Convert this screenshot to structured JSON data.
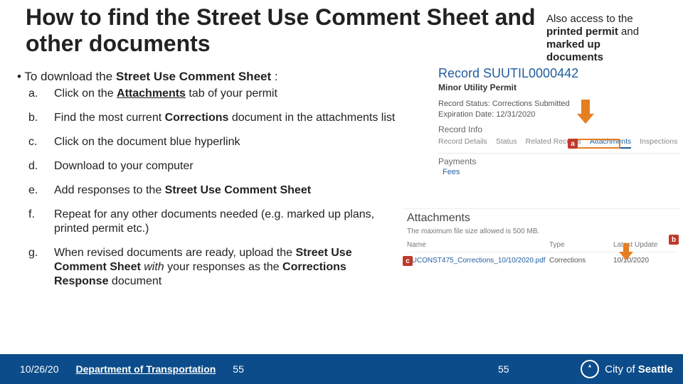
{
  "title": "How to find the Street Use Comment Sheet and other documents",
  "callout": {
    "line1": "Also access to the",
    "line2_pre": "printed permit",
    "line2_post": " and",
    "line3": "marked up",
    "line4": "documents"
  },
  "intro": {
    "prefix": "• To download the ",
    "bold": "Street Use Comment Sheet",
    "suffix": " :"
  },
  "steps": [
    {
      "letter": "a.",
      "html": "Click on the <span class='u'><b>Attachments</b></span> tab of your permit"
    },
    {
      "letter": "b.",
      "html": "Find the most current <b>Corrections</b> document in the attachments list"
    },
    {
      "letter": "c.",
      "html": "Click on the document blue hyperlink"
    },
    {
      "letter": "d.",
      "html": "Download to your computer"
    },
    {
      "letter": "e.",
      "html": "Add responses to the <b>Street Use Comment Sheet</b>"
    },
    {
      "letter": "f.",
      "html": "Repeat for any other documents needed (e.g. marked up plans, printed permit etc.)"
    },
    {
      "letter": "g.",
      "html": "When revised documents are ready, upload the <b>Street Use Comment Sheet</b> <i>with</i> your responses as the <b>Corrections Response</b> document"
    }
  ],
  "record": {
    "title": "Record SUUTIL0000442",
    "subtitle": "Minor Utility Permit",
    "status": "Record Status: Corrections Submitted",
    "expiration": "Expiration Date: 12/31/2020",
    "sectionInfo": "Record Info",
    "tabs": [
      "Record Details",
      "Status",
      "Related Records",
      "Attachments",
      "Inspections"
    ],
    "active_tab_index": 3,
    "payments": "Payments",
    "fees": "Fees"
  },
  "attachments": {
    "title": "Attachments",
    "note": "The maximum file size allowed is 500 MB.",
    "columns": [
      "Name",
      "Type",
      "Latest Update"
    ],
    "row": {
      "name": "SUCONST475_Corrections_10/10/2020.pdf",
      "type": "Corrections",
      "date": "10/10/2020"
    }
  },
  "markers": {
    "a": "a",
    "b": "b",
    "c": "c"
  },
  "footer": {
    "date": "10/26/20",
    "dept": "Department of Transportation",
    "page_left": "55",
    "page_right": "55",
    "city_label_pre": "City of ",
    "city_label_bold": "Seattle"
  },
  "colors": {
    "footer_bg": "#0c4c8a",
    "link": "#1f5e9e",
    "marker_bg": "#c0392b",
    "arrow": "#e67e22"
  }
}
